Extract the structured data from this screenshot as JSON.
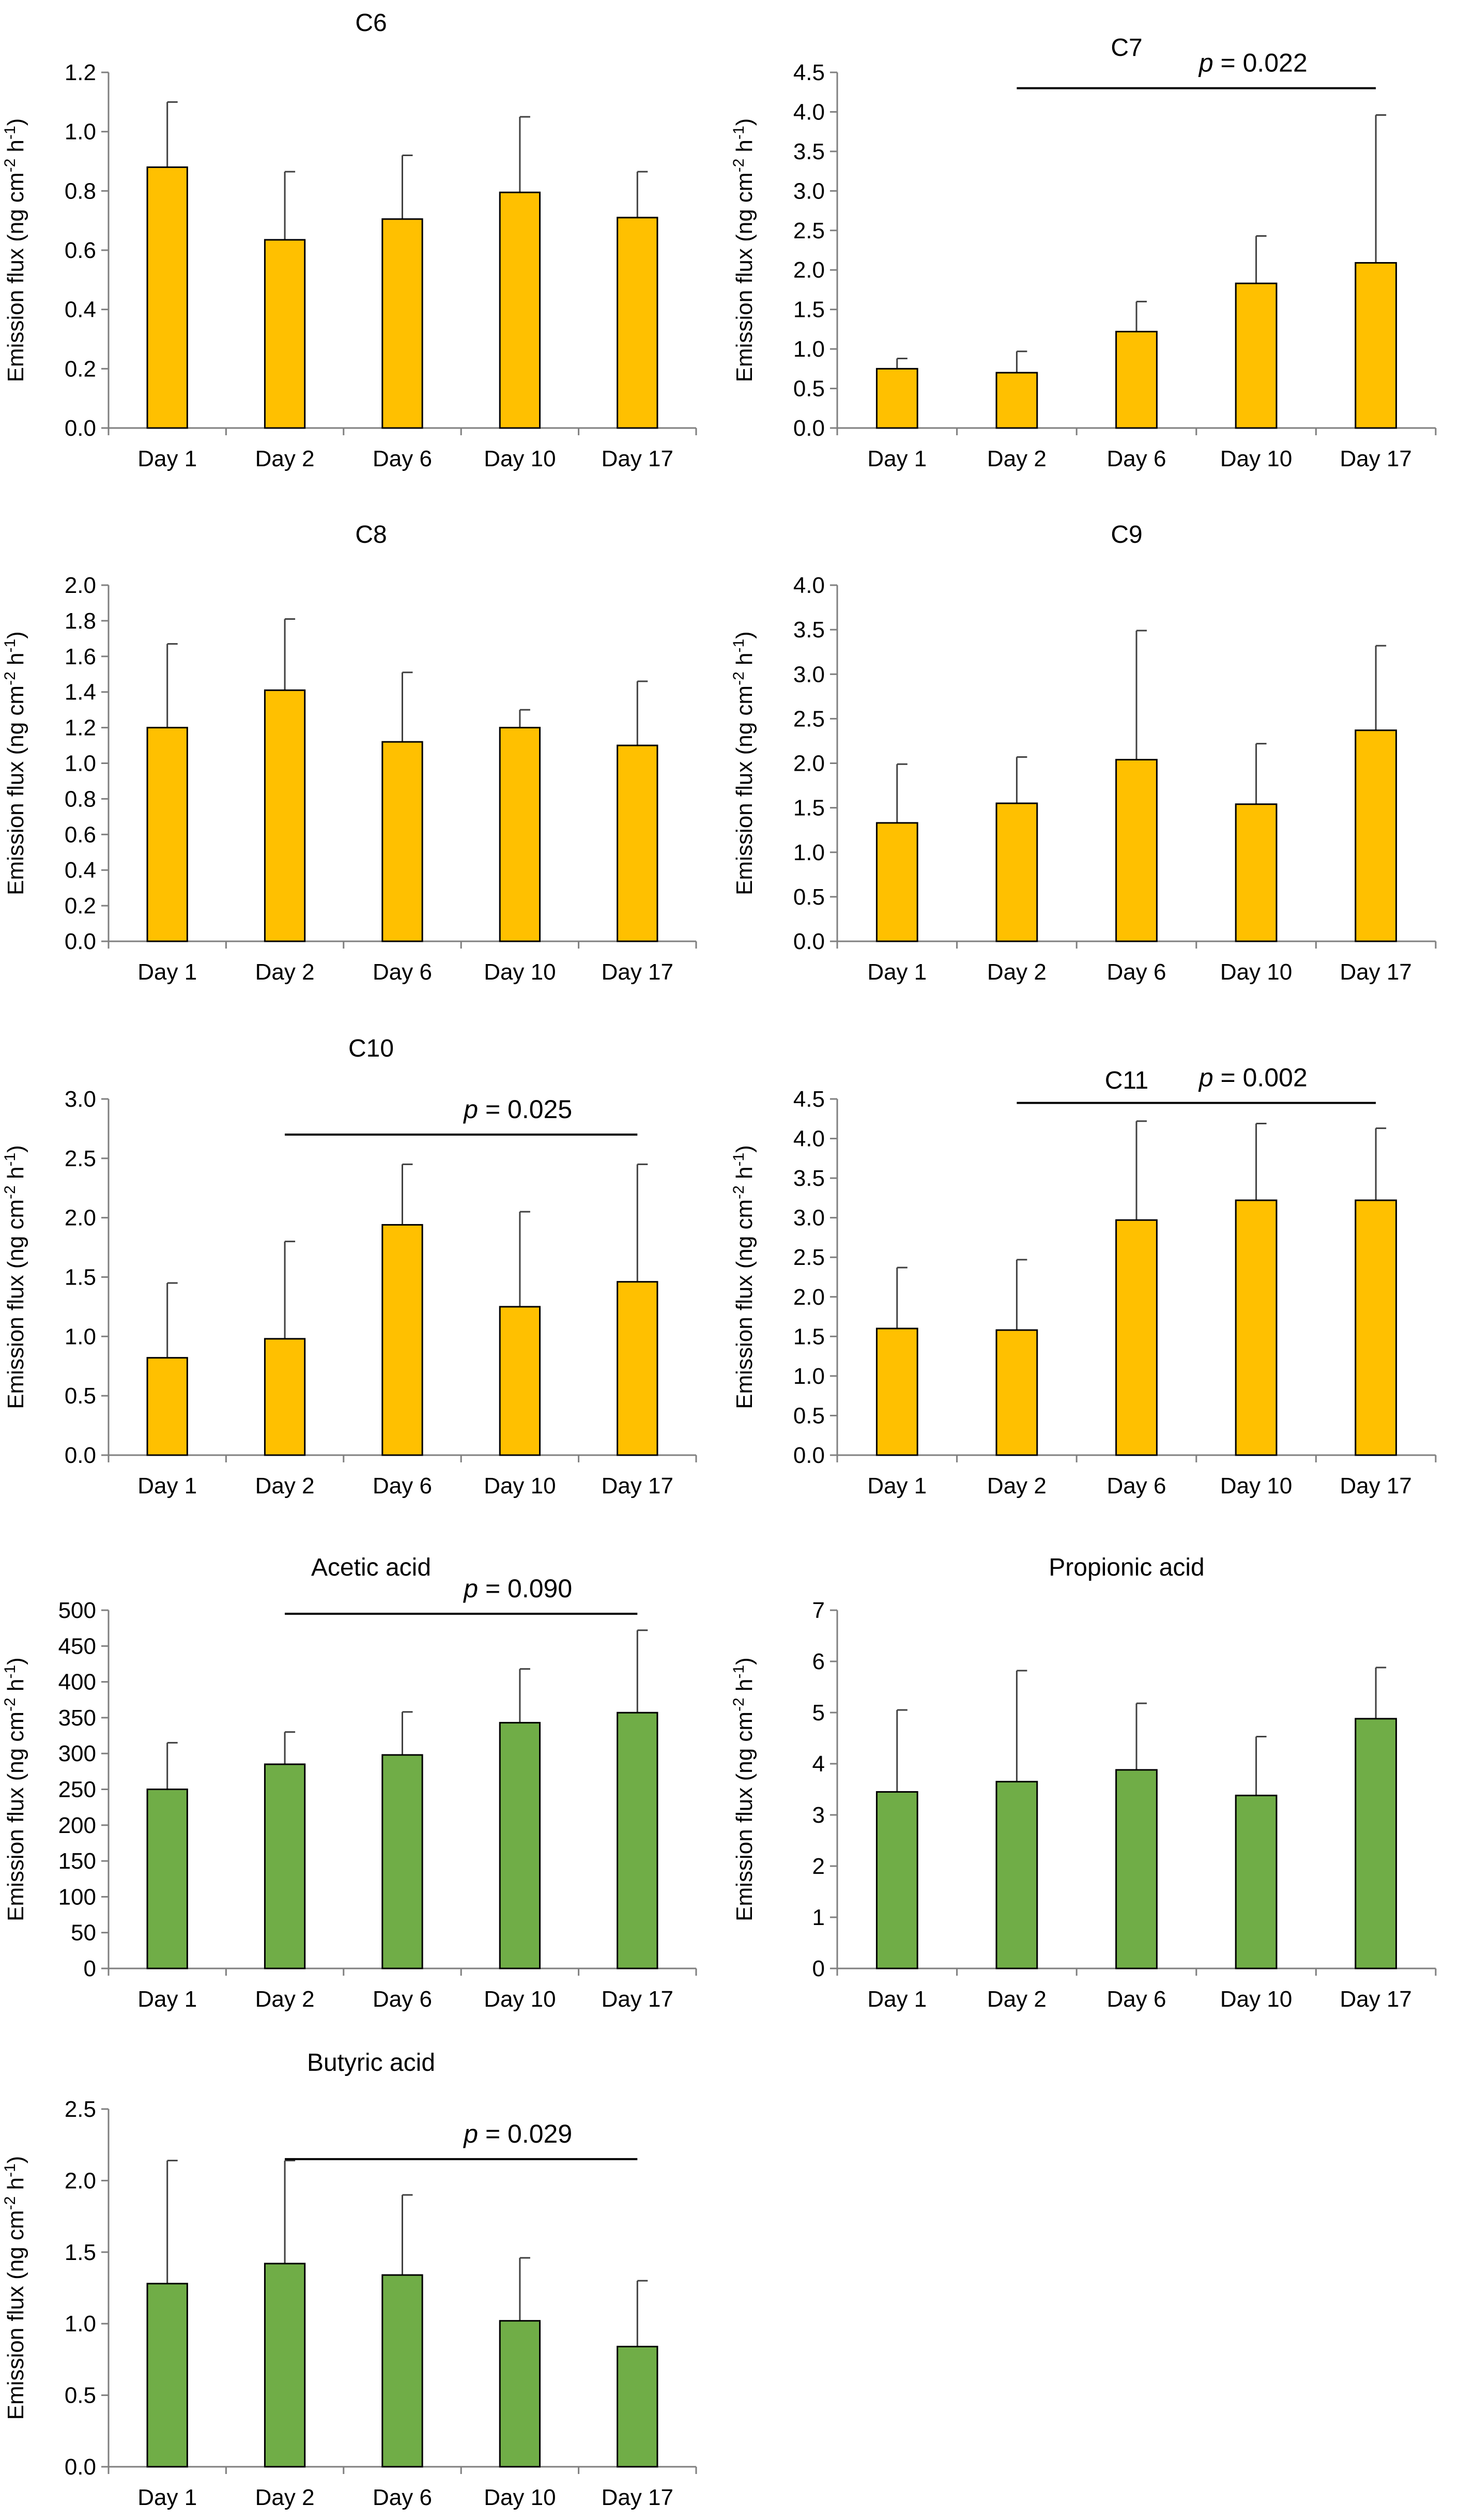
{
  "colors": {
    "yellow": "#FFC000",
    "green": "#70AD47",
    "axis": "#7f7f7f",
    "bar_edge": "#000000",
    "err": "#404040"
  },
  "y_label_main": "Emission  flux (ng cm",
  "y_label_sup1": "-2",
  "y_label_mid": " h",
  "y_label_sup2": "-1",
  "y_label_end": ")",
  "p_prefix": "p",
  "chart_data": [
    {
      "title": "C6",
      "type": "bar",
      "categories": [
        "Day 1",
        "Day 2",
        "Day 6",
        "Day 10",
        "Day 17"
      ],
      "values": [
        0.88,
        0.635,
        0.705,
        0.795,
        0.71
      ],
      "errors": [
        0.22,
        0.23,
        0.215,
        0.255,
        0.155
      ],
      "ylim": [
        0,
        1.2
      ],
      "ystep": 0.2,
      "decimals": 1,
      "color": "yellow",
      "ylabel": "Emission  flux (ng cm-2 h-1)"
    },
    {
      "title": "C7",
      "type": "bar",
      "categories": [
        "Day 1",
        "Day 2",
        "Day 6",
        "Day 10",
        "Day 17"
      ],
      "values": [
        0.75,
        0.7,
        1.22,
        1.83,
        2.09
      ],
      "errors": [
        0.13,
        0.27,
        0.38,
        0.6,
        1.87
      ],
      "ylim": [
        0,
        4.5
      ],
      "ystep": 0.5,
      "decimals": 1,
      "color": "yellow",
      "p_text": "= 0.022",
      "p_from": 1,
      "p_to": 4,
      "p_y": 4.3,
      "ylabel": "Emission  flux (ng cm-2 h-1)"
    },
    {
      "title": "C8",
      "type": "bar",
      "categories": [
        "Day 1",
        "Day 2",
        "Day 6",
        "Day 10",
        "Day 17"
      ],
      "values": [
        1.2,
        1.41,
        1.12,
        1.2,
        1.1
      ],
      "errors": [
        0.47,
        0.4,
        0.39,
        0.1,
        0.36
      ],
      "ylim": [
        0,
        2.0
      ],
      "ystep": 0.2,
      "decimals": 1,
      "color": "yellow",
      "ylabel": "Emission  flux (ng cm-2 h-1)"
    },
    {
      "title": "C9",
      "type": "bar",
      "categories": [
        "Day 1",
        "Day 2",
        "Day 6",
        "Day 10",
        "Day 17"
      ],
      "values": [
        1.33,
        1.55,
        2.04,
        1.54,
        2.37
      ],
      "errors": [
        0.66,
        0.52,
        1.45,
        0.68,
        0.95
      ],
      "ylim": [
        0,
        4.0
      ],
      "ystep": 0.5,
      "decimals": 1,
      "color": "yellow",
      "ylabel": "Emission  flux (ng cm-2 h-1)"
    },
    {
      "title": "C10",
      "type": "bar",
      "categories": [
        "Day 1",
        "Day 2",
        "Day 6",
        "Day 10",
        "Day 17"
      ],
      "values": [
        0.82,
        0.98,
        1.94,
        1.25,
        1.46
      ],
      "errors": [
        0.63,
        0.82,
        0.51,
        0.8,
        0.99
      ],
      "ylim": [
        0,
        3.0
      ],
      "ystep": 0.5,
      "decimals": 1,
      "color": "yellow",
      "p_text": "= 0.025",
      "p_from": 1,
      "p_to": 4,
      "p_y": 2.7,
      "ylabel": "Emission  flux (ng cm-2 h-1)"
    },
    {
      "title": "C11",
      "type": "bar",
      "categories": [
        "Day 1",
        "Day 2",
        "Day 6",
        "Day 10",
        "Day 17"
      ],
      "values": [
        1.6,
        1.58,
        2.97,
        3.22,
        3.22
      ],
      "errors": [
        0.77,
        0.89,
        1.25,
        0.97,
        0.91
      ],
      "ylim": [
        0,
        4.5
      ],
      "ystep": 0.5,
      "decimals": 1,
      "color": "yellow",
      "p_text": "= 0.002",
      "p_from": 1,
      "p_to": 4,
      "p_y": 4.45,
      "ylabel": "Emission  flux (ng cm-2 h-1)"
    },
    {
      "title": "Acetic acid",
      "type": "bar",
      "categories": [
        "Day 1",
        "Day 2",
        "Day 6",
        "Day 10",
        "Day 17"
      ],
      "values": [
        250,
        285,
        298,
        343,
        357
      ],
      "errors": [
        65,
        45,
        60,
        75,
        115
      ],
      "ylim": [
        0,
        500
      ],
      "ystep": 50,
      "decimals": 0,
      "color": "green",
      "p_text": "= 0.090",
      "p_from": 1,
      "p_to": 4,
      "p_y": 495,
      "ylabel": "Emission  flux (ng cm-2 h-1)"
    },
    {
      "title": "Propionic acid",
      "type": "bar",
      "categories": [
        "Day 1",
        "Day 2",
        "Day 6",
        "Day 10",
        "Day 17"
      ],
      "values": [
        3.45,
        3.65,
        3.88,
        3.38,
        4.88
      ],
      "errors": [
        1.6,
        2.17,
        1.3,
        1.15,
        1.0
      ],
      "ylim": [
        0,
        7
      ],
      "ystep": 1,
      "decimals": 0,
      "color": "green",
      "ylabel": "Emission  flux (ng cm-2 h-1)"
    },
    {
      "title": "Butyric acid",
      "type": "bar",
      "categories": [
        "Day 1",
        "Day 2",
        "Day 6",
        "Day 10",
        "Day 17"
      ],
      "values": [
        1.28,
        1.42,
        1.34,
        1.02,
        0.84
      ],
      "errors": [
        0.86,
        0.72,
        0.56,
        0.44,
        0.46
      ],
      "ylim": [
        0,
        2.5
      ],
      "ystep": 0.5,
      "decimals": 1,
      "color": "green",
      "p_text": "= 0.029",
      "p_from": 1,
      "p_to": 4,
      "p_y": 2.15,
      "ylabel": "Emission  flux (ng cm-2 h-1)"
    }
  ]
}
